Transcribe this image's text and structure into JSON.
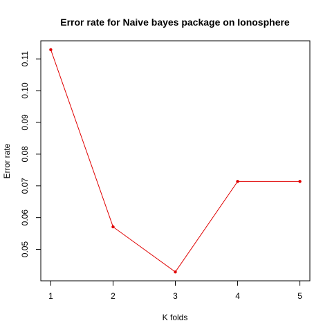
{
  "chart_data": {
    "type": "line",
    "title": "Error rate for Naive bayes package on Ionosphere",
    "xlabel": "K folds",
    "ylabel": "Error rate",
    "x": [
      1,
      2,
      3,
      4,
      5
    ],
    "xticks": [
      "1",
      "2",
      "3",
      "4",
      "5"
    ],
    "yticks": [
      "0.05",
      "0.06",
      "0.07",
      "0.08",
      "0.09",
      "0.10",
      "0.11"
    ],
    "series": [
      {
        "values": [
          0.1129,
          0.0571,
          0.0429,
          0.0714,
          0.0714
        ],
        "color": "#e00000"
      }
    ],
    "xlim": [
      0.84,
      5.16
    ],
    "ylim": [
      0.0401,
      0.1157
    ],
    "grid": false,
    "legend": "none",
    "marker": "filled-circle"
  }
}
